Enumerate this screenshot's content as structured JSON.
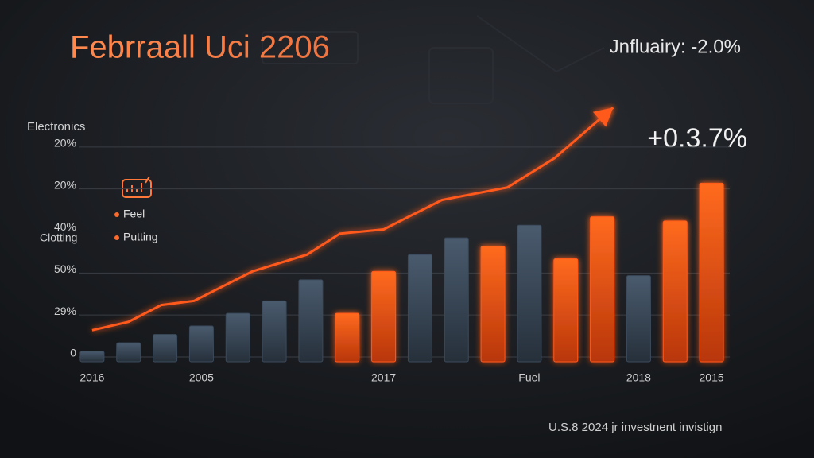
{
  "chart_data": {
    "type": "bar",
    "title": "Febrraall Uci 2206",
    "subtitle": "Jnfluairy: -2.0%",
    "annotation": "+0.3.7%",
    "y_label": "Electronics",
    "side_label": "Clotting",
    "footer": "U.S.8 2024 jr investnent invistign",
    "legend": [
      "Feel",
      "Putting"
    ],
    "legend_color": "#ff6a2a",
    "categories": [
      "2016",
      null,
      null,
      "2005",
      null,
      null,
      null,
      null,
      "2017",
      null,
      null,
      null,
      "Fuel",
      null,
      null,
      "2018",
      null,
      "2015"
    ],
    "values": [
      0.1,
      0.3,
      0.5,
      0.7,
      1.0,
      1.3,
      1.8,
      1.0,
      2.0,
      2.4,
      2.8,
      2.6,
      3.1,
      2.3,
      3.3,
      1.9,
      3.2,
      4.1
    ],
    "colors": [
      "#3b4a5b",
      "#3b4a5b",
      "#3b4a5b",
      "#3b4a5b",
      "#3b4a5b",
      "#3b4a5b",
      "#3b4a5b",
      "#ff5a1a",
      "#ff5a1a",
      "#3b4a5b",
      "#3b4a5b",
      "#ff5a1a",
      "#3b4a5b",
      "#ff5a1a",
      "#ff5a1a",
      "#3b4a5b",
      "#ff5a1a",
      "#ff5a1a"
    ],
    "trend": {
      "color": "#ff5a1f",
      "x": [
        0,
        1.0,
        1.9,
        2.8,
        4.4,
        5.9,
        6.8,
        8.0,
        9.6,
        11.4,
        12.7,
        14.3
      ],
      "values": [
        0.6,
        0.8,
        1.2,
        1.3,
        2.0,
        2.4,
        2.9,
        3.0,
        3.7,
        4.0,
        4.7,
        5.9
      ]
    },
    "xlim": [
      -0.5,
      17.5
    ],
    "ylim": [
      0,
      6
    ],
    "yticks": [
      0,
      {
        "value": 1,
        "label": "29%"
      },
      {
        "value": 2,
        "label": "50%"
      },
      {
        "value": 3,
        "label": "40%"
      },
      {
        "value": 4,
        "label": "20%"
      },
      {
        "value": 5,
        "label": "20%"
      }
    ],
    "grid": true
  }
}
